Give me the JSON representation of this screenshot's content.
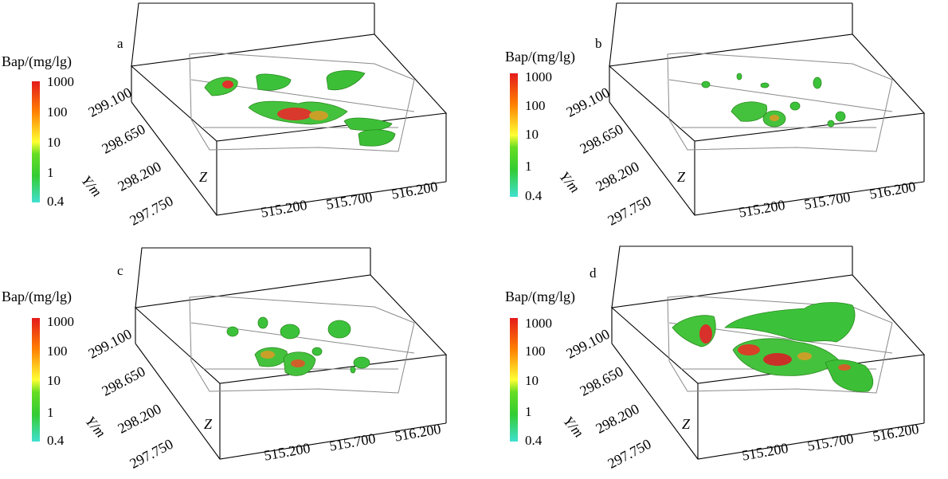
{
  "colorbar": {
    "title": "Bap/(mg/lg)",
    "ticks": [
      "1000",
      "100",
      "10",
      "1",
      "0.4"
    ]
  },
  "axes": {
    "y_label": "Y/m",
    "z_label": "Z",
    "y_ticks": [
      "299.100",
      "298.650",
      "298.200",
      "297.750"
    ],
    "x_ticks": [
      "515.200",
      "515.700",
      "516.200"
    ]
  },
  "panels": [
    {
      "label": "a"
    },
    {
      "label": "b"
    },
    {
      "label": "c"
    },
    {
      "label": "d"
    }
  ]
}
